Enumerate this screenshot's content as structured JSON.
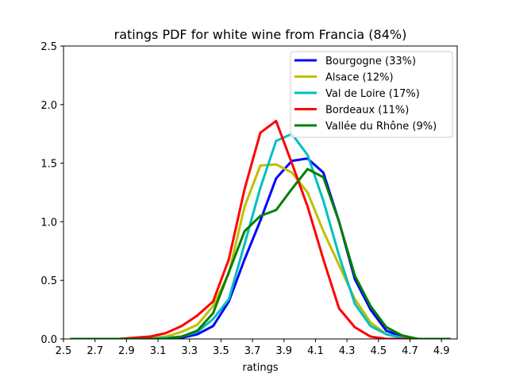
{
  "chart_data": {
    "type": "line",
    "title": "ratings PDF for white wine from Francia (84%)",
    "xlabel": "ratings",
    "ylabel": "",
    "xlim": [
      2.5,
      5.0
    ],
    "ylim": [
      0,
      2.5
    ],
    "xticks": [
      "2.5",
      "2.7",
      "2.9",
      "3.1",
      "3.3",
      "3.5",
      "3.7",
      "3.9",
      "4.1",
      "4.3",
      "4.5",
      "4.7",
      "4.9"
    ],
    "yticks": [
      "0.0",
      "0.5",
      "1.0",
      "1.5",
      "2.0",
      "2.5"
    ],
    "legend_position": "top-right",
    "grid": false,
    "series": [
      {
        "name": "Bourgogne (33%)",
        "color": "#0000ff",
        "x": [
          2.55,
          2.65,
          2.75,
          2.85,
          2.95,
          3.05,
          3.15,
          3.25,
          3.35,
          3.45,
          3.55,
          3.65,
          3.75,
          3.85,
          3.95,
          4.05,
          4.15,
          4.25,
          4.35,
          4.45,
          4.55,
          4.65,
          4.75,
          4.85,
          4.95
        ],
        "y": [
          0.0,
          0.0,
          0.0,
          0.0,
          0.0,
          0.0,
          0.0,
          0.01,
          0.04,
          0.11,
          0.32,
          0.68,
          1.01,
          1.37,
          1.52,
          1.54,
          1.42,
          1.0,
          0.51,
          0.25,
          0.07,
          0.02,
          0.0,
          0.0,
          0.0
        ]
      },
      {
        "name": "Alsace (12%)",
        "color": "#bfbf00",
        "x": [
          2.55,
          2.65,
          2.75,
          2.85,
          2.95,
          3.05,
          3.15,
          3.25,
          3.35,
          3.45,
          3.55,
          3.65,
          3.75,
          3.85,
          3.95,
          4.05,
          4.15,
          4.25,
          4.35,
          4.45,
          4.55,
          4.65,
          4.75,
          4.85,
          4.95
        ],
        "y": [
          0.0,
          0.0,
          0.0,
          0.0,
          0.0,
          0.01,
          0.02,
          0.06,
          0.12,
          0.28,
          0.56,
          1.13,
          1.48,
          1.49,
          1.42,
          1.25,
          0.92,
          0.63,
          0.34,
          0.14,
          0.04,
          0.01,
          0.0,
          0.0,
          0.0
        ]
      },
      {
        "name": "Val de Loire (17%)",
        "color": "#00bfbf",
        "x": [
          2.55,
          2.65,
          2.75,
          2.85,
          2.95,
          3.05,
          3.15,
          3.25,
          3.35,
          3.45,
          3.55,
          3.65,
          3.75,
          3.85,
          3.95,
          4.05,
          4.15,
          4.25,
          4.35,
          4.45,
          4.55,
          4.65,
          4.75,
          4.85,
          4.95
        ],
        "y": [
          0.0,
          0.0,
          0.0,
          0.0,
          0.0,
          0.0,
          0.01,
          0.02,
          0.06,
          0.17,
          0.34,
          0.81,
          1.29,
          1.69,
          1.75,
          1.57,
          1.18,
          0.71,
          0.3,
          0.11,
          0.04,
          0.01,
          0.0,
          0.0,
          0.0
        ]
      },
      {
        "name": "Bordeaux (11%)",
        "color": "#ff0000",
        "x": [
          2.55,
          2.65,
          2.75,
          2.85,
          2.95,
          3.05,
          3.15,
          3.25,
          3.35,
          3.45,
          3.55,
          3.65,
          3.75,
          3.85,
          3.95,
          4.05,
          4.15,
          4.25,
          4.35,
          4.45,
          4.55,
          4.65,
          4.75,
          4.85,
          4.95
        ],
        "y": [
          0.0,
          0.0,
          0.0,
          0.0,
          0.01,
          0.02,
          0.05,
          0.11,
          0.2,
          0.32,
          0.68,
          1.28,
          1.76,
          1.86,
          1.5,
          1.13,
          0.68,
          0.26,
          0.1,
          0.02,
          0.0,
          0.0,
          0.0,
          0.0,
          0.0
        ]
      },
      {
        "name": "Vallée du Rhône (9%)",
        "color": "#008000",
        "x": [
          2.55,
          2.65,
          2.75,
          2.85,
          2.95,
          3.05,
          3.15,
          3.25,
          3.35,
          3.45,
          3.55,
          3.65,
          3.75,
          3.85,
          3.95,
          4.05,
          4.15,
          4.25,
          4.35,
          4.45,
          4.55,
          4.65,
          4.75,
          4.85,
          4.95
        ],
        "y": [
          0.0,
          0.0,
          0.0,
          0.0,
          0.0,
          0.0,
          0.0,
          0.02,
          0.07,
          0.22,
          0.57,
          0.92,
          1.05,
          1.1,
          1.28,
          1.45,
          1.38,
          1.0,
          0.54,
          0.28,
          0.1,
          0.03,
          0.0,
          0.0,
          0.0
        ]
      }
    ]
  }
}
